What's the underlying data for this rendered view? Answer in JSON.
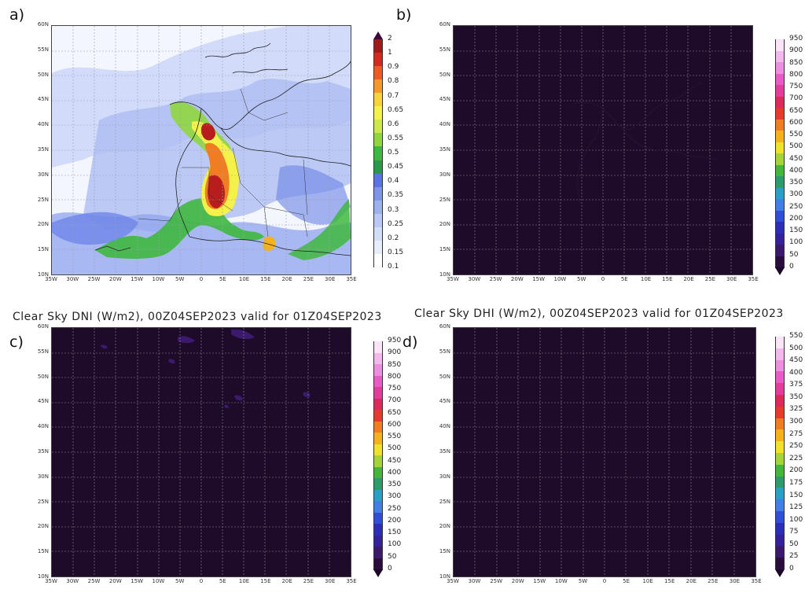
{
  "panels": {
    "a": {
      "letter": "a)",
      "title": "",
      "colorbar_labels": [
        "2",
        "1",
        "0.9",
        "0.8",
        "0.7",
        "0.65",
        "0.6",
        "0.55",
        "0.5",
        "0.45",
        "0.4",
        "0.35",
        "0.3",
        "0.25",
        "0.2",
        "0.15",
        "0.1"
      ],
      "colorbar_colors": [
        "#a01a1a",
        "#d42a1e",
        "#ee5a24",
        "#f59a2a",
        "#f8d43a",
        "#f4f14a",
        "#cde84a",
        "#8fd63f",
        "#3fb83f",
        "#2a9a4a",
        "#5a74e6",
        "#7f95ec",
        "#9db0f0",
        "#b9c8f4",
        "#d2ddf8",
        "#e7eefb",
        "#ffffff"
      ],
      "colorbar_top_tip": "#3b0a3b",
      "colorbar_bottom_tip": "#ffffff"
    },
    "b": {
      "letter": "b)",
      "title": "",
      "colorbar_labels": [
        "950",
        "900",
        "850",
        "800",
        "750",
        "700",
        "650",
        "600",
        "550",
        "500",
        "450",
        "400",
        "350",
        "300",
        "250",
        "200",
        "150",
        "100",
        "50",
        "0"
      ],
      "colorbar_colors": [
        "#fbe4f8",
        "#f5b8ee",
        "#ee8ee0",
        "#e95cc8",
        "#e23c9c",
        "#dc2a5a",
        "#e53a2c",
        "#f07d22",
        "#f6b21e",
        "#f1e02c",
        "#a4d43a",
        "#46b63a",
        "#2f9a6a",
        "#2aa0c8",
        "#3f7fe6",
        "#2f4fd8",
        "#2c2eb8",
        "#35229a",
        "#3b1a6e",
        "#2a0d3e"
      ],
      "colorbar_top_tip": "#ffffff",
      "colorbar_bottom_tip": "#1a0826"
    },
    "c": {
      "letter": "c)",
      "title": "Clear Sky DNI (W/m2), 00Z04SEP2023 valid for 01Z04SEP2023",
      "colorbar_labels": [
        "950",
        "900",
        "850",
        "800",
        "750",
        "700",
        "650",
        "600",
        "550",
        "500",
        "450",
        "400",
        "350",
        "300",
        "250",
        "200",
        "150",
        "100",
        "50",
        "0"
      ],
      "colorbar_colors": [
        "#fbe4f8",
        "#f5b8ee",
        "#ee8ee0",
        "#e95cc8",
        "#e23c9c",
        "#dc2a5a",
        "#e53a2c",
        "#f07d22",
        "#f6b21e",
        "#f1e02c",
        "#a4d43a",
        "#46b63a",
        "#2f9a6a",
        "#2aa0c8",
        "#3f7fe6",
        "#2f4fd8",
        "#2c2eb8",
        "#35229a",
        "#3b1a6e",
        "#2a0d3e"
      ],
      "colorbar_top_tip": "#ffffff",
      "colorbar_bottom_tip": "#1a0826"
    },
    "d": {
      "letter": "d)",
      "title": "Clear Sky DHI (W/m2), 00Z04SEP2023 valid for 01Z04SEP2023",
      "colorbar_labels": [
        "550",
        "500",
        "450",
        "400",
        "375",
        "350",
        "325",
        "300",
        "275",
        "250",
        "225",
        "200",
        "175",
        "150",
        "125",
        "100",
        "75",
        "50",
        "25",
        "0"
      ],
      "colorbar_colors": [
        "#fbe4f8",
        "#f5b8ee",
        "#ee8ee0",
        "#e95cc8",
        "#e23c9c",
        "#dc2a5a",
        "#e53a2c",
        "#f07d22",
        "#f6b21e",
        "#f1e02c",
        "#a4d43a",
        "#46b63a",
        "#2f9a6a",
        "#2aa0c8",
        "#3f7fe6",
        "#2f4fd8",
        "#2c2eb8",
        "#35229a",
        "#3b1a6e",
        "#2a0d3e"
      ],
      "colorbar_top_tip": "#ffffff",
      "colorbar_bottom_tip": "#1a0826"
    }
  },
  "map": {
    "lat_labels": [
      "60N",
      "55N",
      "50N",
      "45N",
      "40N",
      "35N",
      "30N",
      "25N",
      "20N",
      "15N",
      "10N"
    ],
    "lon_labels": [
      "35W",
      "30W",
      "25W",
      "20W",
      "15W",
      "10W",
      "5W",
      "0",
      "5E",
      "10E",
      "15E",
      "20E",
      "25E",
      "30E",
      "35E"
    ],
    "dark_fill": "#1e0b29",
    "light_background": "#f3f6fd"
  }
}
